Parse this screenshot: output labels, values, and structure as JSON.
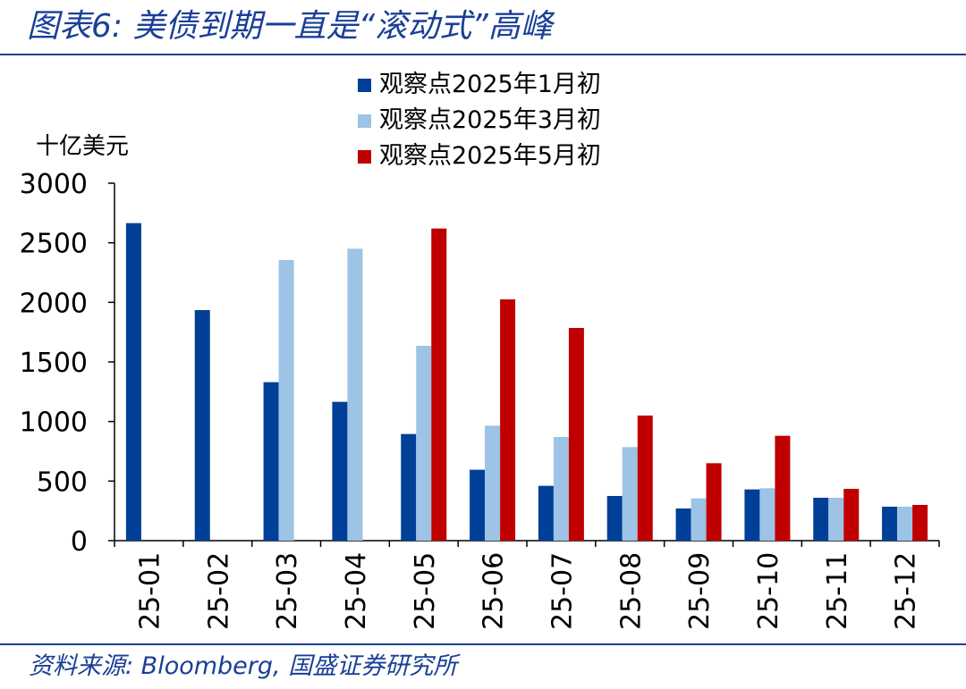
{
  "title": "图表6: 美债到期一直是“滚动式”高峰",
  "source": "资料来源: Bloomberg, 国盛证券研究所",
  "chart_data": {
    "type": "bar",
    "ylabel": "十亿美元",
    "ylim": [
      0,
      3000
    ],
    "yticks": [
      0,
      500,
      1000,
      1500,
      2000,
      2500,
      3000
    ],
    "categories": [
      "25-01",
      "25-02",
      "25-03",
      "25-04",
      "25-05",
      "25-06",
      "25-07",
      "25-08",
      "25-09",
      "25-10",
      "25-11",
      "25-12"
    ],
    "series": [
      {
        "name": "观察点2025年1月初",
        "color": "#003f98",
        "values": [
          2665,
          1935,
          1330,
          1165,
          895,
          595,
          460,
          375,
          270,
          430,
          360,
          285
        ]
      },
      {
        "name": "观察点2025年3月初",
        "color": "#9dc3e6",
        "values": [
          null,
          null,
          2355,
          2450,
          1635,
          965,
          870,
          785,
          355,
          440,
          360,
          285
        ]
      },
      {
        "name": "观察点2025年5月初",
        "color": "#c00000",
        "values": [
          null,
          null,
          null,
          null,
          2620,
          2025,
          1785,
          1050,
          650,
          880,
          435,
          300
        ]
      }
    ],
    "legend": "top",
    "grid": false
  }
}
